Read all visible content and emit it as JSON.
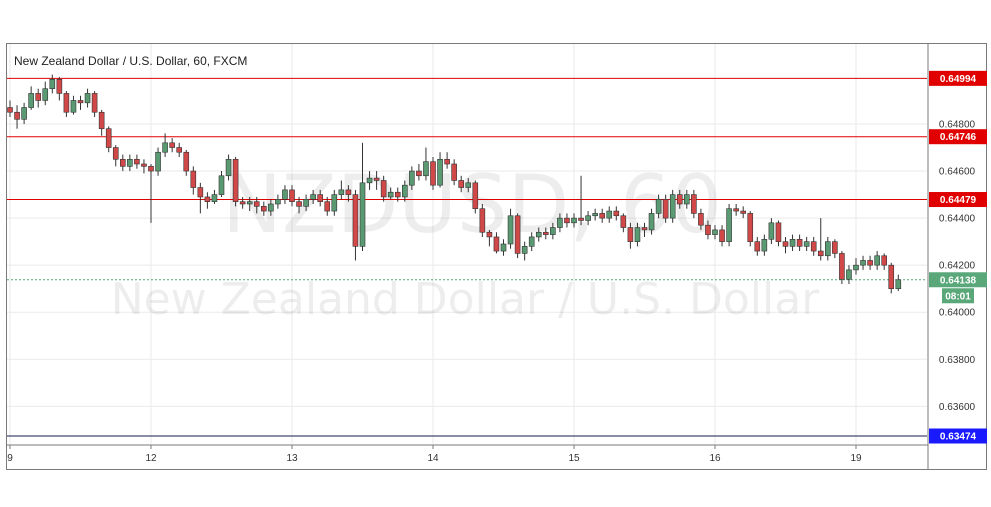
{
  "chart_data": {
    "type": "candlestick",
    "title": "New Zealand Dollar / U.S. Dollar, 60, FXCM",
    "watermark_symbol": "NZDUSD, 60",
    "watermark_name": "New Zealand Dollar / U.S. Dollar",
    "x_ticks": [
      {
        "label": "9",
        "index": 0
      },
      {
        "label": "12",
        "index": 20
      },
      {
        "label": "13",
        "index": 40
      },
      {
        "label": "14",
        "index": 60
      },
      {
        "label": "15",
        "index": 80
      },
      {
        "label": "16",
        "index": 100
      },
      {
        "label": "19",
        "index": 120
      }
    ],
    "y_ticks": [
      0.648,
      0.646,
      0.644,
      0.642,
      0.64,
      0.638,
      0.636
    ],
    "y_tick_labels": [
      "0.64800",
      "0.64600",
      "0.64400",
      "0.64200",
      "0.64000",
      "0.63800",
      "0.63600"
    ],
    "ylim": [
      0.6344,
      0.6514
    ],
    "horizontal_lines": [
      {
        "value": 0.64994,
        "label": "0.64994",
        "color": "#e00000"
      },
      {
        "value": 0.64746,
        "label": "0.64746",
        "color": "#e00000"
      },
      {
        "value": 0.64479,
        "label": "0.64479",
        "color": "#e00000"
      },
      {
        "value": 0.63474,
        "label": "0.63474",
        "color": "#1a1aff",
        "line_color": "#1a1a4a"
      }
    ],
    "current_price": {
      "value": 0.64138,
      "label": "0.64138",
      "countdown": "08:01",
      "color": "#5aa87a"
    },
    "colors": {
      "up": "#5a9a72",
      "down": "#d04848",
      "grid": "#eaeaea",
      "wick": "#333333"
    },
    "grid": true,
    "candles": [
      [
        0.6487,
        0.6485,
        0.649,
        0.6483
      ],
      [
        0.6485,
        0.6482,
        0.6488,
        0.6478
      ],
      [
        0.6482,
        0.6487,
        0.6489,
        0.648
      ],
      [
        0.6487,
        0.6493,
        0.6496,
        0.6486
      ],
      [
        0.6493,
        0.649,
        0.6495,
        0.6487
      ],
      [
        0.649,
        0.6495,
        0.6498,
        0.6488
      ],
      [
        0.6495,
        0.6499,
        0.6501,
        0.6493
      ],
      [
        0.6499,
        0.6493,
        0.65,
        0.649
      ],
      [
        0.6493,
        0.6485,
        0.6494,
        0.6483
      ],
      [
        0.6485,
        0.649,
        0.6492,
        0.6484
      ],
      [
        0.649,
        0.6489,
        0.6492,
        0.6486
      ],
      [
        0.6489,
        0.6493,
        0.6495,
        0.6487
      ],
      [
        0.6493,
        0.6485,
        0.6494,
        0.6483
      ],
      [
        0.6485,
        0.6478,
        0.6486,
        0.6475
      ],
      [
        0.6478,
        0.647,
        0.6479,
        0.6468
      ],
      [
        0.647,
        0.6465,
        0.6471,
        0.6462
      ],
      [
        0.6465,
        0.6462,
        0.6467,
        0.646
      ],
      [
        0.6462,
        0.6465,
        0.6467,
        0.646
      ],
      [
        0.6465,
        0.6463,
        0.6467,
        0.6461
      ],
      [
        0.6463,
        0.6462,
        0.6465,
        0.6459
      ],
      [
        0.6462,
        0.646,
        0.6463,
        0.6438
      ],
      [
        0.646,
        0.6468,
        0.647,
        0.6458
      ],
      [
        0.6468,
        0.6472,
        0.6476,
        0.6466
      ],
      [
        0.6472,
        0.647,
        0.6474,
        0.6468
      ],
      [
        0.647,
        0.6468,
        0.6472,
        0.6466
      ],
      [
        0.6468,
        0.646,
        0.6469,
        0.6458
      ],
      [
        0.646,
        0.6453,
        0.6462,
        0.645
      ],
      [
        0.6453,
        0.6449,
        0.6455,
        0.6442
      ],
      [
        0.6449,
        0.6447,
        0.6451,
        0.6444
      ],
      [
        0.6447,
        0.645,
        0.6452,
        0.6446
      ],
      [
        0.645,
        0.6458,
        0.646,
        0.6449
      ],
      [
        0.6458,
        0.6465,
        0.6467,
        0.6456
      ],
      [
        0.6465,
        0.6447,
        0.6466,
        0.6445
      ],
      [
        0.6447,
        0.6446,
        0.6449,
        0.6444
      ],
      [
        0.6446,
        0.6447,
        0.6449,
        0.6443
      ],
      [
        0.6447,
        0.6445,
        0.6449,
        0.6442
      ],
      [
        0.6445,
        0.6443,
        0.6447,
        0.6441
      ],
      [
        0.6443,
        0.6446,
        0.6448,
        0.6441
      ],
      [
        0.6446,
        0.6448,
        0.645,
        0.6444
      ],
      [
        0.6448,
        0.6452,
        0.6454,
        0.6446
      ],
      [
        0.6452,
        0.6447,
        0.6454,
        0.6445
      ],
      [
        0.6447,
        0.6445,
        0.6449,
        0.6442
      ],
      [
        0.6445,
        0.6448,
        0.645,
        0.6443
      ],
      [
        0.6448,
        0.645,
        0.6452,
        0.6446
      ],
      [
        0.645,
        0.6447,
        0.6452,
        0.6445
      ],
      [
        0.6447,
        0.6443,
        0.6449,
        0.6441
      ],
      [
        0.6443,
        0.645,
        0.6452,
        0.6441
      ],
      [
        0.645,
        0.6452,
        0.6456,
        0.6448
      ],
      [
        0.6452,
        0.645,
        0.6454,
        0.6447
      ],
      [
        0.645,
        0.6428,
        0.6452,
        0.6422
      ],
      [
        0.6428,
        0.6455,
        0.6472,
        0.6426
      ],
      [
        0.6455,
        0.6457,
        0.646,
        0.6452
      ],
      [
        0.6457,
        0.6456,
        0.646,
        0.6452
      ],
      [
        0.6456,
        0.6449,
        0.6458,
        0.6447
      ],
      [
        0.6449,
        0.6451,
        0.6453,
        0.6448
      ],
      [
        0.6451,
        0.6449,
        0.6453,
        0.6447
      ],
      [
        0.6449,
        0.6454,
        0.6456,
        0.6447
      ],
      [
        0.6454,
        0.646,
        0.6462,
        0.6452
      ],
      [
        0.646,
        0.6458,
        0.6463,
        0.6456
      ],
      [
        0.6458,
        0.6464,
        0.647,
        0.6456
      ],
      [
        0.6464,
        0.6454,
        0.6466,
        0.6452
      ],
      [
        0.6454,
        0.6465,
        0.6468,
        0.6453
      ],
      [
        0.6465,
        0.6463,
        0.6468,
        0.6461
      ],
      [
        0.6463,
        0.6456,
        0.6465,
        0.6454
      ],
      [
        0.6456,
        0.6453,
        0.6458,
        0.6451
      ],
      [
        0.6453,
        0.6455,
        0.6457,
        0.6451
      ],
      [
        0.6455,
        0.6444,
        0.6456,
        0.6442
      ],
      [
        0.6444,
        0.6434,
        0.6446,
        0.6432
      ],
      [
        0.6434,
        0.6432,
        0.6435,
        0.6428
      ],
      [
        0.6432,
        0.6426,
        0.6434,
        0.6425
      ],
      [
        0.6426,
        0.6429,
        0.6431,
        0.6424
      ],
      [
        0.6429,
        0.6441,
        0.6444,
        0.6427
      ],
      [
        0.6441,
        0.6425,
        0.6442,
        0.6423
      ],
      [
        0.6425,
        0.6428,
        0.643,
        0.6422
      ],
      [
        0.6428,
        0.6432,
        0.6434,
        0.6426
      ],
      [
        0.6432,
        0.6434,
        0.6436,
        0.643
      ],
      [
        0.6434,
        0.6433,
        0.6436,
        0.6431
      ],
      [
        0.6433,
        0.6436,
        0.6438,
        0.6431
      ],
      [
        0.6436,
        0.644,
        0.6442,
        0.6434
      ],
      [
        0.644,
        0.6438,
        0.6442,
        0.6436
      ],
      [
        0.6438,
        0.644,
        0.6442,
        0.6436
      ],
      [
        0.644,
        0.6439,
        0.6458,
        0.6437
      ],
      [
        0.6439,
        0.6441,
        0.6443,
        0.6437
      ],
      [
        0.6441,
        0.6442,
        0.6444,
        0.6439
      ],
      [
        0.6442,
        0.644,
        0.6444,
        0.6438
      ],
      [
        0.644,
        0.6443,
        0.6445,
        0.6438
      ],
      [
        0.6443,
        0.6441,
        0.6445,
        0.6439
      ],
      [
        0.6441,
        0.6436,
        0.6442,
        0.6434
      ],
      [
        0.6436,
        0.643,
        0.6438,
        0.6427
      ],
      [
        0.643,
        0.6436,
        0.6438,
        0.6428
      ],
      [
        0.6436,
        0.6435,
        0.6438,
        0.6432
      ],
      [
        0.6435,
        0.6442,
        0.6444,
        0.6433
      ],
      [
        0.6442,
        0.6448,
        0.645,
        0.644
      ],
      [
        0.6448,
        0.644,
        0.645,
        0.6438
      ],
      [
        0.644,
        0.645,
        0.6452,
        0.6438
      ],
      [
        0.645,
        0.6446,
        0.6452,
        0.6444
      ],
      [
        0.6446,
        0.645,
        0.6452,
        0.6444
      ],
      [
        0.645,
        0.6442,
        0.6452,
        0.644
      ],
      [
        0.6442,
        0.6437,
        0.6444,
        0.6435
      ],
      [
        0.6437,
        0.6433,
        0.6439,
        0.6431
      ],
      [
        0.6433,
        0.6435,
        0.6437,
        0.6431
      ],
      [
        0.6435,
        0.643,
        0.6437,
        0.6428
      ],
      [
        0.643,
        0.6444,
        0.6446,
        0.6428
      ],
      [
        0.6444,
        0.6443,
        0.6446,
        0.6441
      ],
      [
        0.6443,
        0.6442,
        0.6445,
        0.644
      ],
      [
        0.6442,
        0.643,
        0.6443,
        0.6428
      ],
      [
        0.643,
        0.6426,
        0.6432,
        0.6424
      ],
      [
        0.6426,
        0.6431,
        0.6433,
        0.6424
      ],
      [
        0.6431,
        0.6438,
        0.644,
        0.6429
      ],
      [
        0.6438,
        0.643,
        0.6439,
        0.6428
      ],
      [
        0.643,
        0.6428,
        0.6432,
        0.6425
      ],
      [
        0.6428,
        0.6431,
        0.6433,
        0.6426
      ],
      [
        0.6431,
        0.6428,
        0.6433,
        0.6426
      ],
      [
        0.6428,
        0.643,
        0.6432,
        0.6426
      ],
      [
        0.643,
        0.6426,
        0.6432,
        0.6424
      ],
      [
        0.6426,
        0.6424,
        0.644,
        0.6422
      ],
      [
        0.6424,
        0.643,
        0.6432,
        0.6422
      ],
      [
        0.643,
        0.6425,
        0.6431,
        0.6423
      ],
      [
        0.6425,
        0.6414,
        0.6426,
        0.6412
      ],
      [
        0.6414,
        0.6418,
        0.642,
        0.6412
      ],
      [
        0.6418,
        0.642,
        0.6423,
        0.6416
      ],
      [
        0.642,
        0.6422,
        0.6424,
        0.6418
      ],
      [
        0.6422,
        0.642,
        0.6424,
        0.6418
      ],
      [
        0.642,
        0.6424,
        0.6426,
        0.6418
      ],
      [
        0.6424,
        0.642,
        0.6425,
        0.6418
      ],
      [
        0.642,
        0.641,
        0.6421,
        0.6408
      ],
      [
        0.641,
        0.64138,
        0.6416,
        0.6409
      ]
    ]
  }
}
